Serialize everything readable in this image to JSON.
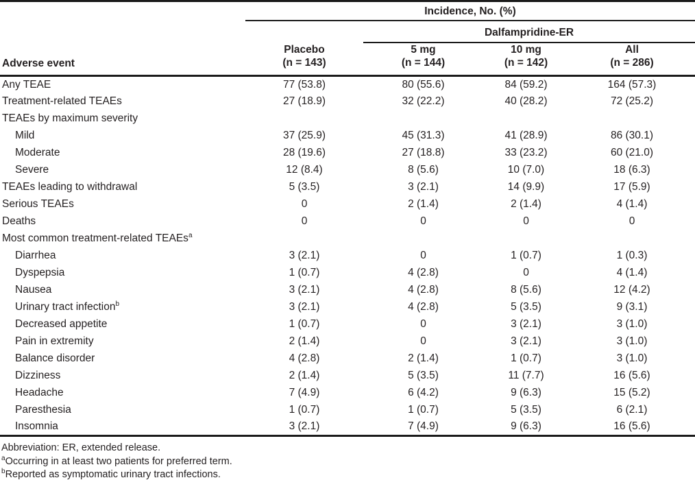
{
  "colors": {
    "text": "#231f20",
    "rule": "#1a1a1a",
    "background": "#ffffff"
  },
  "table": {
    "spanner1": "Incidence, No. (%)",
    "spanner2": "Dalfampridine-ER",
    "row_header": "Adverse event",
    "columns": [
      {
        "label": "Placebo",
        "sub": "(n = 143)"
      },
      {
        "label": "5 mg",
        "sub": "(n = 144)"
      },
      {
        "label": "10 mg",
        "sub": "(n = 142)"
      },
      {
        "label": "All",
        "sub": "(n = 286)"
      }
    ],
    "rows": [
      {
        "label": "Any TEAE",
        "sup": "",
        "indent": false,
        "values": [
          "77 (53.8)",
          "80 (55.6)",
          "84 (59.2)",
          "164 (57.3)"
        ]
      },
      {
        "label": "Treatment-related TEAEs",
        "sup": "",
        "indent": false,
        "values": [
          "27 (18.9)",
          "32 (22.2)",
          "40 (28.2)",
          "72 (25.2)"
        ]
      },
      {
        "label": "TEAEs by maximum severity",
        "sup": "",
        "indent": false,
        "values": [
          "",
          "",
          "",
          ""
        ]
      },
      {
        "label": "Mild",
        "sup": "",
        "indent": true,
        "values": [
          "37 (25.9)",
          "45 (31.3)",
          "41 (28.9)",
          "86 (30.1)"
        ]
      },
      {
        "label": "Moderate",
        "sup": "",
        "indent": true,
        "values": [
          "28 (19.6)",
          "27 (18.8)",
          "33 (23.2)",
          "60 (21.0)"
        ]
      },
      {
        "label": "Severe",
        "sup": "",
        "indent": true,
        "values": [
          "12 (8.4)",
          "8 (5.6)",
          "10 (7.0)",
          "18 (6.3)"
        ]
      },
      {
        "label": "TEAEs leading to withdrawal",
        "sup": "",
        "indent": false,
        "values": [
          "5 (3.5)",
          "3 (2.1)",
          "14 (9.9)",
          "17 (5.9)"
        ]
      },
      {
        "label": "Serious TEAEs",
        "sup": "",
        "indent": false,
        "values": [
          "0",
          "2 (1.4)",
          "2 (1.4)",
          "4 (1.4)"
        ]
      },
      {
        "label": "Deaths",
        "sup": "",
        "indent": false,
        "values": [
          "0",
          "0",
          "0",
          "0"
        ]
      },
      {
        "label": "Most common treatment-related TEAEs",
        "sup": "a",
        "indent": false,
        "values": [
          "",
          "",
          "",
          ""
        ]
      },
      {
        "label": "Diarrhea",
        "sup": "",
        "indent": true,
        "values": [
          "3 (2.1)",
          "0",
          "1 (0.7)",
          "1 (0.3)"
        ]
      },
      {
        "label": "Dyspepsia",
        "sup": "",
        "indent": true,
        "values": [
          "1 (0.7)",
          "4 (2.8)",
          "0",
          "4 (1.4)"
        ]
      },
      {
        "label": "Nausea",
        "sup": "",
        "indent": true,
        "values": [
          "3 (2.1)",
          "4 (2.8)",
          "8 (5.6)",
          "12 (4.2)"
        ]
      },
      {
        "label": "Urinary tract infection",
        "sup": "b",
        "indent": true,
        "values": [
          "3 (2.1)",
          "4 (2.8)",
          "5 (3.5)",
          "9 (3.1)"
        ]
      },
      {
        "label": "Decreased appetite",
        "sup": "",
        "indent": true,
        "values": [
          "1 (0.7)",
          "0",
          "3 (2.1)",
          "3 (1.0)"
        ]
      },
      {
        "label": "Pain in extremity",
        "sup": "",
        "indent": true,
        "values": [
          "2 (1.4)",
          "0",
          "3 (2.1)",
          "3 (1.0)"
        ]
      },
      {
        "label": "Balance disorder",
        "sup": "",
        "indent": true,
        "values": [
          "4 (2.8)",
          "2 (1.4)",
          "1 (0.7)",
          "3 (1.0)"
        ]
      },
      {
        "label": "Dizziness",
        "sup": "",
        "indent": true,
        "values": [
          "2 (1.4)",
          "5 (3.5)",
          "11 (7.7)",
          "16 (5.6)"
        ]
      },
      {
        "label": "Headache",
        "sup": "",
        "indent": true,
        "values": [
          "7 (4.9)",
          "6 (4.2)",
          "9 (6.3)",
          "15 (5.2)"
        ]
      },
      {
        "label": "Paresthesia",
        "sup": "",
        "indent": true,
        "values": [
          "1 (0.7)",
          "1 (0.7)",
          "5 (3.5)",
          "6 (2.1)"
        ]
      },
      {
        "label": "Insomnia",
        "sup": "",
        "indent": true,
        "values": [
          "3 (2.1)",
          "7 (4.9)",
          "9 (6.3)",
          "16 (5.6)"
        ]
      }
    ],
    "footnotes": [
      {
        "marker": "",
        "text": "Abbreviation: ER, extended release."
      },
      {
        "marker": "a",
        "text": "Occurring in at least two patients for preferred term."
      },
      {
        "marker": "b",
        "text": "Reported as symptomatic urinary tract infections."
      }
    ]
  }
}
